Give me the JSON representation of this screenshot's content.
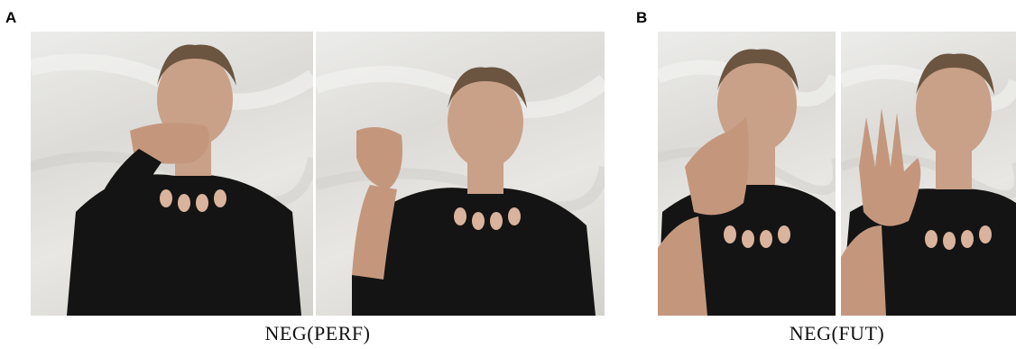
{
  "panels": [
    {
      "letter": "A",
      "caption": "NEG(PERF)"
    },
    {
      "letter": "B",
      "caption": "NEG(FUT)"
    }
  ],
  "colors": {
    "background_wall": "#e3e2de",
    "clothing": "#141414",
    "skin": "#c9a088",
    "hair": "#6b5540",
    "cutout": "#d9b39c"
  },
  "photo_descriptions": {
    "photo_a1": "Signer covering mouth with hand",
    "photo_a2": "Signer holding hand with bent fingers beside shoulder",
    "photo_b1": "Signer with index finger pressed on lips",
    "photo_b2": "Signer showing open palm beside face"
  }
}
